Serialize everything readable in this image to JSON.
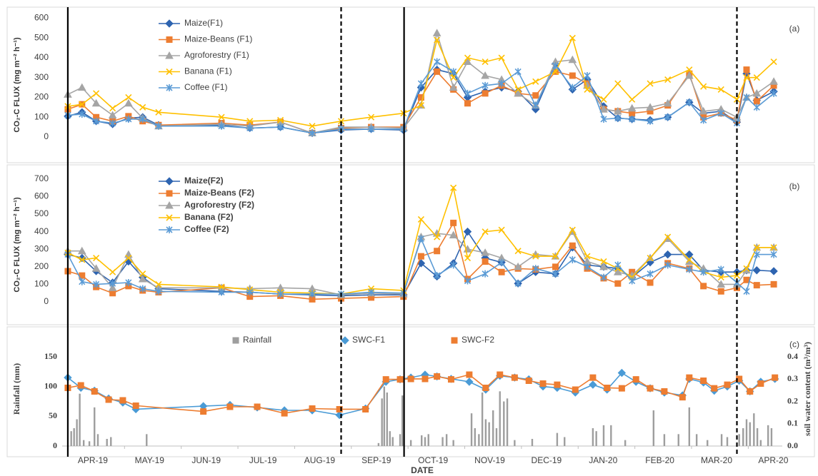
{
  "chart_data": [
    {
      "type": "line",
      "panel_label": "(a)",
      "ylabel": "CO₂-C FLUX  (mg m⁻² h⁻¹)",
      "xlim": [
        -0.1,
        12.6
      ],
      "ylim": [
        -130,
        620
      ],
      "yticks": [
        0,
        100,
        200,
        300,
        400,
        500,
        600
      ],
      "legend": "upper left",
      "x": [
        0,
        0.25,
        0.5,
        0.79,
        1.07,
        1.32,
        1.6,
        2.71,
        3.21,
        3.75,
        4.31,
        4.82,
        5.35,
        5.92,
        6.23,
        6.51,
        6.8,
        7.05,
        7.36,
        7.65,
        7.94,
        8.25,
        8.6,
        8.9,
        9.16,
        9.45,
        9.7,
        9.95,
        10.27,
        10.58,
        10.96,
        11.21,
        11.52,
        11.8,
        11.97,
        12.15,
        12.45
      ],
      "series": [
        {
          "name": "Maize(F1)",
          "color": "#2e64b0",
          "marker": "diamond",
          "values": [
            105,
            125,
            80,
            65,
            95,
            100,
            60,
            60,
            45,
            50,
            20,
            35,
            40,
            35,
            250,
            340,
            320,
            200,
            230,
            250,
            230,
            140,
            370,
            240,
            290,
            155,
            95,
            90,
            85,
            100,
            175,
            120,
            130,
            75,
            320,
            185,
            230
          ]
        },
        {
          "name": "Maize-Beans (F1)",
          "color": "#ed7d31",
          "marker": "square",
          "values": [
            140,
            165,
            100,
            80,
            105,
            80,
            60,
            70,
            60,
            75,
            20,
            45,
            50,
            50,
            200,
            330,
            240,
            170,
            220,
            260,
            220,
            210,
            330,
            310,
            270,
            140,
            130,
            120,
            130,
            160,
            320,
            100,
            120,
            85,
            340,
            180,
            260
          ]
        },
        {
          "name": "Agroforestry (F1)",
          "color": "#a5a5a5",
          "marker": "triangle",
          "values": [
            215,
            250,
            170,
            110,
            170,
            95,
            55,
            65,
            55,
            75,
            20,
            50,
            50,
            45,
            160,
            525,
            250,
            380,
            310,
            290,
            220,
            160,
            380,
            390,
            260,
            140,
            130,
            145,
            150,
            170,
            310,
            130,
            140,
            100,
            200,
            220,
            280
          ]
        },
        {
          "name": "Banana (F1)",
          "color": "#ffc000",
          "marker": "x",
          "values": [
            155,
            165,
            220,
            145,
            200,
            150,
            125,
            100,
            80,
            85,
            55,
            80,
            100,
            120,
            160,
            490,
            300,
            400,
            380,
            400,
            240,
            280,
            330,
            500,
            240,
            190,
            270,
            190,
            270,
            290,
            340,
            255,
            240,
            190,
            300,
            300,
            380
          ]
        },
        {
          "name": "Coffee (F1)",
          "color": "#5b9bd5",
          "marker": "star",
          "values": [
            110,
            115,
            80,
            70,
            90,
            90,
            55,
            55,
            45,
            50,
            20,
            40,
            40,
            40,
            270,
            380,
            330,
            220,
            260,
            270,
            330,
            160,
            360,
            250,
            310,
            90,
            95,
            90,
            80,
            100,
            175,
            85,
            120,
            70,
            200,
            150,
            220
          ]
        }
      ]
    },
    {
      "type": "line",
      "panel_label": "(b)",
      "ylabel": "CO₂-C FLUX  (mg m⁻² h⁻¹)",
      "xlim": [
        -0.1,
        12.6
      ],
      "ylim": [
        -130,
        740
      ],
      "yticks": [
        0,
        100,
        200,
        300,
        400,
        500,
        600,
        700
      ],
      "legend": "upper left",
      "x": [
        0,
        0.25,
        0.5,
        0.79,
        1.07,
        1.32,
        1.6,
        2.71,
        3.21,
        3.75,
        4.31,
        4.82,
        5.35,
        5.92,
        6.23,
        6.51,
        6.8,
        7.05,
        7.36,
        7.65,
        7.94,
        8.25,
        8.6,
        8.9,
        9.16,
        9.45,
        9.7,
        9.95,
        10.27,
        10.58,
        10.96,
        11.21,
        11.52,
        11.8,
        11.97,
        12.15,
        12.45
      ],
      "series": [
        {
          "name": "Maize(F2)",
          "color": "#2e64b0",
          "marker": "diamond",
          "values": [
            270,
            250,
            175,
            110,
            230,
            140,
            75,
            60,
            55,
            45,
            40,
            35,
            40,
            40,
            220,
            145,
            220,
            400,
            250,
            225,
            105,
            170,
            160,
            310,
            210,
            200,
            190,
            140,
            225,
            270,
            270,
            180,
            170,
            170,
            180,
            180,
            175
          ]
        },
        {
          "name": "Maize-Beans (F2)",
          "color": "#ed7d31",
          "marker": "square",
          "values": [
            175,
            150,
            85,
            50,
            90,
            65,
            55,
            80,
            30,
            35,
            15,
            20,
            25,
            30,
            260,
            290,
            450,
            130,
            230,
            170,
            190,
            185,
            200,
            320,
            190,
            135,
            105,
            170,
            110,
            220,
            190,
            90,
            60,
            80,
            125,
            95,
            100
          ]
        },
        {
          "name": "Agroforestry (F2)",
          "color": "#a5a5a5",
          "marker": "triangle",
          "values": [
            290,
            290,
            190,
            80,
            270,
            130,
            80,
            80,
            75,
            80,
            75,
            40,
            50,
            45,
            370,
            390,
            380,
            300,
            280,
            250,
            200,
            270,
            260,
            400,
            230,
            200,
            170,
            150,
            250,
            360,
            230,
            190,
            100,
            100,
            180,
            310,
            310
          ]
        },
        {
          "name": "Banana (F2)",
          "color": "#ffc000",
          "marker": "x",
          "values": [
            280,
            240,
            250,
            170,
            250,
            160,
            100,
            85,
            70,
            55,
            50,
            45,
            75,
            65,
            470,
            370,
            650,
            250,
            400,
            410,
            290,
            260,
            260,
            410,
            260,
            230,
            190,
            140,
            250,
            370,
            240,
            170,
            140,
            150,
            190,
            310,
            310
          ]
        },
        {
          "name": "Coffee (F2)",
          "color": "#5b9bd5",
          "marker": "star",
          "values": [
            270,
            115,
            100,
            105,
            110,
            75,
            60,
            55,
            55,
            45,
            45,
            45,
            55,
            50,
            360,
            150,
            210,
            120,
            160,
            225,
            105,
            190,
            160,
            240,
            200,
            140,
            210,
            120,
            160,
            210,
            185,
            170,
            185,
            110,
            60,
            270,
            270
          ]
        }
      ]
    },
    {
      "type": "combo",
      "panel_label": "(c)",
      "ylabel": "Rainfall (mm)",
      "y2label": "soil water content  (m³/m³)",
      "xlabel": "DATE",
      "xlim": [
        -0.1,
        12.6
      ],
      "ylim": [
        0,
        195
      ],
      "yticks": [
        0,
        50,
        100,
        150
      ],
      "y2lim": [
        0,
        0.52
      ],
      "y2ticks": [
        {
          "value": 0,
          "label": "0.0"
        },
        0.1,
        0.2,
        0.3,
        0.4
      ],
      "legend": "top",
      "xticks": [
        {
          "value": 0,
          "label": "APR-19"
        },
        {
          "value": 1,
          "label": "MAY-19"
        },
        {
          "value": 2,
          "label": "JUN-19"
        },
        {
          "value": 3,
          "label": "JUL-19"
        },
        {
          "value": 4,
          "label": "AUG-19"
        },
        {
          "value": 5,
          "label": "SEP-19"
        },
        {
          "value": 6,
          "label": "OCT-19"
        },
        {
          "value": 7,
          "label": "NOV-19"
        },
        {
          "value": 8,
          "label": "DEC-19"
        },
        {
          "value": 9,
          "label": "JAN-20"
        },
        {
          "value": 10,
          "label": "FEB-20"
        },
        {
          "value": 11,
          "label": "MAR-20"
        },
        {
          "value": 12,
          "label": "APR-20"
        }
      ],
      "vlines": [
        {
          "x": 0,
          "style": "solid"
        },
        {
          "x": 4.82,
          "style": "dashed"
        },
        {
          "x": 5.93,
          "style": "solid"
        },
        {
          "x": 11.8,
          "style": "dashed"
        }
      ],
      "x": [
        0,
        0.23,
        0.47,
        0.72,
        0.97,
        1.2,
        2.39,
        2.86,
        3.34,
        3.82,
        4.31,
        4.79,
        5.25,
        5.61,
        5.86,
        6.05,
        6.3,
        6.51,
        6.76,
        7.08,
        7.37,
        7.62,
        7.88,
        8.13,
        8.38,
        8.63,
        8.95,
        9.26,
        9.51,
        9.77,
        10.02,
        10.27,
        10.52,
        10.84,
        10.96,
        11.21,
        11.4,
        11.63,
        11.84,
        12.03,
        12.22,
        12.47
      ],
      "series": [
        {
          "name": "Rainfall",
          "color": "#9e9e9e",
          "marker": "square",
          "kind": "bar",
          "x": [
            0.06,
            0.11,
            0.16,
            0.21,
            0.28,
            0.38,
            0.47,
            0.53,
            0.69,
            0.76,
            1.39,
            5.48,
            5.54,
            5.58,
            5.63,
            5.68,
            5.73,
            5.86,
            5.9,
            6.05,
            6.24,
            6.3,
            6.36,
            6.61,
            6.68,
            6.8,
            7.12,
            7.18,
            7.25,
            7.31,
            7.37,
            7.43,
            7.5,
            7.56,
            7.62,
            7.69,
            7.75,
            7.88,
            8.19,
            8.63,
            8.76,
            9.26,
            9.32,
            9.45,
            9.58,
            9.83,
            10.33,
            10.52,
            10.77,
            10.96,
            11.09,
            11.28,
            11.53,
            11.63,
            11.84,
            11.91,
            11.97,
            12.03,
            12.1,
            12.16,
            12.22,
            12.35,
            12.41
          ],
          "values": [
            25,
            30,
            45,
            88,
            10,
            8,
            65,
            20,
            12,
            15,
            20,
            5,
            80,
            100,
            90,
            25,
            15,
            20,
            85,
            10,
            18,
            15,
            20,
            15,
            20,
            10,
            55,
            30,
            20,
            90,
            45,
            40,
            60,
            30,
            92,
            75,
            80,
            10,
            12,
            22,
            15,
            30,
            25,
            35,
            35,
            10,
            60,
            20,
            20,
            65,
            20,
            10,
            20,
            15,
            20,
            30,
            45,
            40,
            55,
            30,
            10,
            35,
            30
          ]
        },
        {
          "name": "SWC-F1",
          "color": "#4a9bd6",
          "marker": "diamond",
          "axis": "y2",
          "values": [
            0.307,
            0.261,
            0.248,
            0.213,
            0.195,
            0.165,
            0.179,
            0.184,
            0.173,
            0.16,
            0.16,
            0.139,
            0.168,
            0.288,
            0.299,
            0.307,
            0.32,
            0.312,
            0.301,
            0.288,
            0.253,
            0.315,
            0.307,
            0.299,
            0.267,
            0.261,
            0.24,
            0.275,
            0.253,
            0.328,
            0.288,
            0.259,
            0.24,
            0.227,
            0.301,
            0.285,
            0.248,
            0.267,
            0.293,
            0.245,
            0.288,
            0.301
          ]
        },
        {
          "name": "SWC-F2",
          "color": "#ed7d31",
          "marker": "square",
          "axis": "y2",
          "values": [
            0.261,
            0.272,
            0.245,
            0.208,
            0.205,
            0.181,
            0.155,
            0.176,
            0.176,
            0.147,
            0.168,
            0.165,
            0.165,
            0.299,
            0.299,
            0.301,
            0.301,
            0.312,
            0.299,
            0.32,
            0.261,
            0.32,
            0.307,
            0.293,
            0.28,
            0.275,
            0.253,
            0.307,
            0.261,
            0.259,
            0.299,
            0.259,
            0.245,
            0.219,
            0.307,
            0.293,
            0.259,
            0.275,
            0.301,
            0.245,
            0.28,
            0.307
          ]
        }
      ]
    }
  ]
}
